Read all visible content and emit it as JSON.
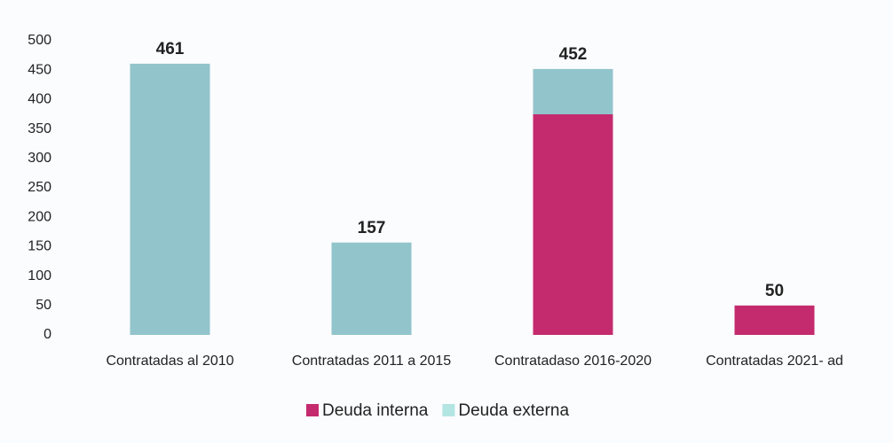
{
  "chart_data": {
    "type": "stacked_bar",
    "categories": [
      "Contratadas al 2010",
      "Contratadas 2011 a 2015",
      "Contratadaso 2016-2020",
      "Contratadas 2021- ad"
    ],
    "series": [
      {
        "name": "Deuda interna",
        "color": "#c42b6e",
        "values": [
          0,
          0,
          375,
          50
        ]
      },
      {
        "name": "Deuda externa",
        "color": "#92c4cb",
        "values": [
          461,
          157,
          77,
          0
        ]
      }
    ],
    "totals": [
      461,
      157,
      452,
      50
    ],
    "ylim": [
      0,
      500
    ],
    "yticks": [
      0,
      50,
      100,
      150,
      200,
      250,
      300,
      350,
      400,
      450,
      500
    ],
    "grid": false,
    "legend": "bottom"
  }
}
